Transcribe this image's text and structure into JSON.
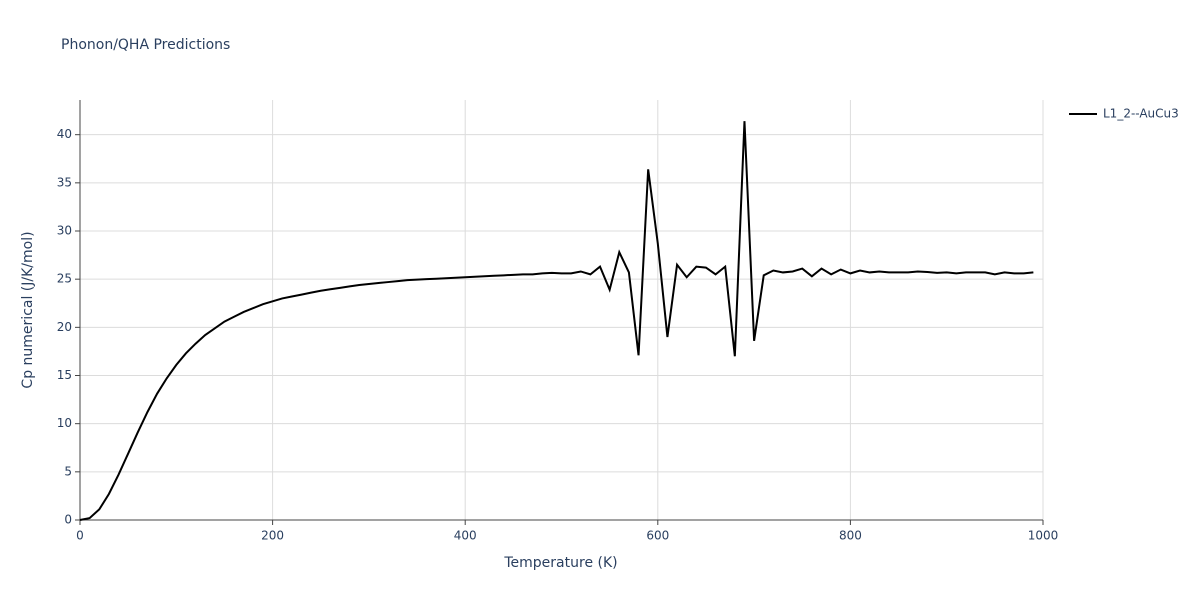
{
  "chart_data": {
    "type": "line",
    "title": "Phonon/QHA Predictions",
    "x_label": "Temperature (K)",
    "y_label": "Cp numerical (J/K/mol)",
    "x": [
      0,
      10,
      20,
      30,
      40,
      50,
      60,
      70,
      80,
      90,
      100,
      110,
      120,
      130,
      140,
      150,
      160,
      170,
      180,
      190,
      200,
      210,
      220,
      230,
      240,
      250,
      260,
      270,
      280,
      290,
      300,
      310,
      320,
      330,
      340,
      350,
      360,
      370,
      380,
      390,
      400,
      410,
      420,
      430,
      440,
      450,
      460,
      470,
      480,
      490,
      500,
      510,
      520,
      530,
      540,
      550,
      560,
      570,
      580,
      590,
      600,
      610,
      620,
      630,
      640,
      650,
      660,
      670,
      680,
      690,
      700,
      710,
      720,
      730,
      740,
      750,
      760,
      770,
      780,
      790,
      800,
      810,
      820,
      830,
      840,
      850,
      860,
      870,
      880,
      890,
      900,
      910,
      920,
      930,
      940,
      950,
      960,
      970,
      980,
      990
    ],
    "series": [
      {
        "name": "L1_2--AuCu3",
        "color": "#000000",
        "values": [
          0,
          0.2,
          1.1,
          2.7,
          4.7,
          6.9,
          9.1,
          11.2,
          13.1,
          14.7,
          16.1,
          17.3,
          18.3,
          19.2,
          19.9,
          20.6,
          21.1,
          21.6,
          22.0,
          22.4,
          22.7,
          23.0,
          23.2,
          23.4,
          23.6,
          23.8,
          23.95,
          24.1,
          24.25,
          24.4,
          24.5,
          24.6,
          24.7,
          24.8,
          24.9,
          24.95,
          25.0,
          25.05,
          25.1,
          25.15,
          25.2,
          25.25,
          25.3,
          25.35,
          25.4,
          25.45,
          25.5,
          25.5,
          25.6,
          25.65,
          25.6,
          25.6,
          25.8,
          25.5,
          26.3,
          23.9,
          27.8,
          25.7,
          17.1,
          36.4,
          28.7,
          19.0,
          26.5,
          25.2,
          26.3,
          26.2,
          25.5,
          26.3,
          17.0,
          41.4,
          18.6,
          25.4,
          25.9,
          25.7,
          25.8,
          26.1,
          25.3,
          26.1,
          25.5,
          26.0,
          25.6,
          25.9,
          25.7,
          25.8,
          25.7,
          25.7,
          25.7,
          25.8,
          25.75,
          25.65,
          25.7,
          25.6,
          25.7,
          25.7,
          25.7,
          25.5,
          25.7,
          25.6,
          25.6,
          25.7
        ]
      }
    ],
    "xlim": [
      0,
      1000
    ],
    "xticks": [
      0,
      200,
      400,
      600,
      800,
      1000
    ],
    "ylim": [
      0,
      43.6
    ],
    "yticks": [
      0,
      5,
      10,
      15,
      20,
      25,
      30,
      35,
      40
    ],
    "grid": true,
    "legend": "right"
  }
}
